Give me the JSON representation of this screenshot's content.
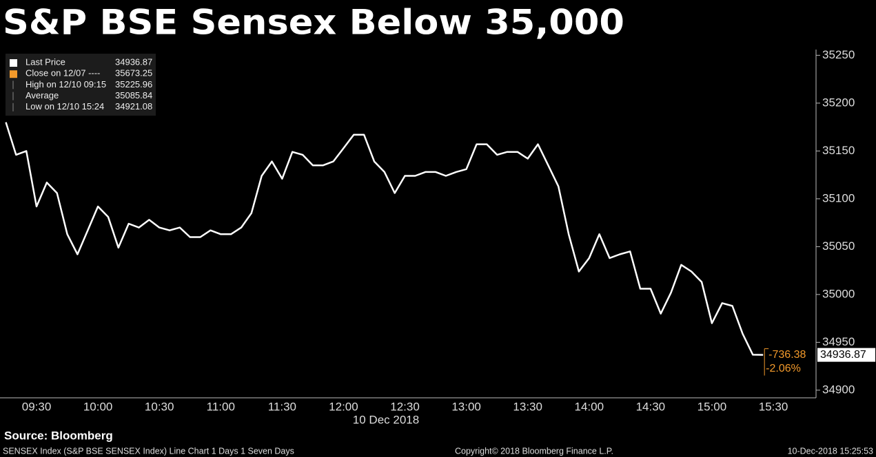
{
  "chart_data": {
    "type": "line",
    "title": "S&P BSE Sensex Below 35,000",
    "x_label": "10 Dec 2018",
    "categories": [
      null,
      null,
      null,
      "09:30",
      null,
      null,
      null,
      null,
      null,
      "10:00",
      null,
      null,
      null,
      null,
      null,
      "10:30",
      null,
      null,
      null,
      null,
      null,
      "11:00",
      null,
      null,
      null,
      null,
      null,
      "11:30",
      null,
      null,
      null,
      null,
      null,
      "12:00",
      null,
      null,
      null,
      null,
      null,
      "12:30",
      null,
      null,
      null,
      null,
      null,
      "13:00",
      null,
      null,
      null,
      null,
      null,
      "13:30",
      null,
      null,
      null,
      null,
      null,
      "14:00",
      null,
      null,
      null,
      null,
      null,
      "14:30",
      null,
      null,
      null,
      null,
      null,
      "15:00",
      null,
      null,
      null,
      null,
      null,
      "15:30"
    ],
    "series": [
      {
        "color": "#ffffff",
        "values": [
          35180,
          35146,
          35150,
          35092,
          35117,
          35106,
          35063,
          35042,
          35067,
          35092,
          35081,
          35049,
          35074,
          35070,
          35078,
          35070,
          35067,
          35070,
          35060,
          35060,
          35067,
          35063,
          35063,
          35070,
          35085,
          35124,
          35139,
          35121,
          35149,
          35146,
          35135,
          35135,
          35139,
          35153,
          35167,
          35167,
          35139,
          35128,
          35106,
          35124,
          35124,
          35128,
          35128,
          35124,
          35128,
          35131,
          35157,
          35157,
          35146,
          35149,
          35149,
          35142,
          35157,
          35135,
          35113,
          35063,
          35024,
          35038,
          35063,
          35038,
          35042,
          35045,
          35006,
          35006,
          34980,
          35002,
          35031,
          35024,
          35013,
          34970,
          34991,
          34988,
          34959,
          34937,
          34936.87,
          null
        ]
      }
    ],
    "ylim": [
      34892,
      35256
    ],
    "yticks": [
      34900,
      34950,
      35000,
      35050,
      35100,
      35150,
      35200,
      35250
    ],
    "grid": false,
    "change": "-736.38",
    "change_pct": "-2.06%",
    "change_color": "#f39a2b",
    "legend": [
      {
        "label": "Last Price",
        "value": 34936.87,
        "color": "#ffffff"
      },
      {
        "label": "Close on 12/07 ----",
        "value": 35673.25,
        "color": "#f39a2b"
      },
      {
        "label": "High on 12/10 09:15",
        "value": 35225.96
      },
      {
        "label": "Average",
        "value": 35085.84
      },
      {
        "label": "Low on 12/10 15:24",
        "value": 34921.08
      }
    ]
  },
  "source": "Source: Bloomberg",
  "footer": {
    "left": "SENSEX Index (S&P BSE SENSEX Index) Line Chart 1 Days 1 Seven Days",
    "center": "Copyright© 2018 Bloomberg Finance L.P.",
    "right": "10-Dec-2018 15:25:53"
  }
}
